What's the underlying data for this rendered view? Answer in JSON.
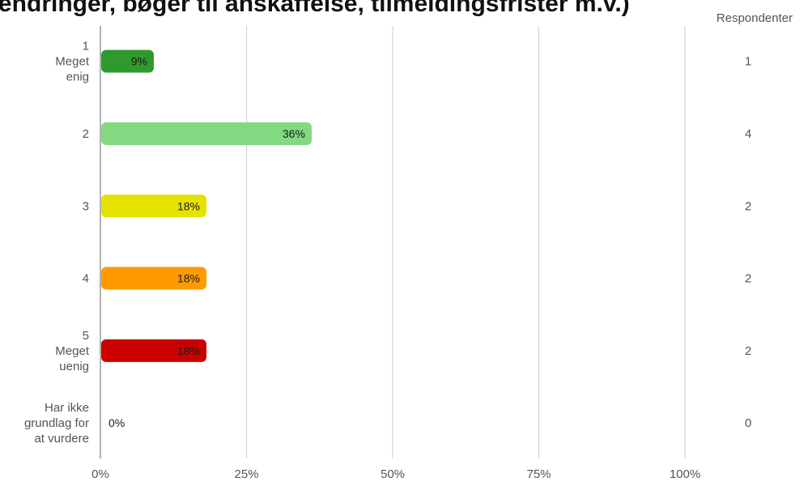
{
  "title": "ændringer, bøger til anskaffelse, tilmeldingsfrister m.v.)",
  "respondents_header": "Respondenter",
  "chart_data": {
    "type": "bar",
    "orientation": "horizontal",
    "categories": [
      [
        "1",
        "Meget",
        "enig"
      ],
      [
        "2"
      ],
      [
        "3"
      ],
      [
        "4"
      ],
      [
        "5",
        "Meget",
        "uenig"
      ],
      [
        "Har ikke",
        "grundlag for",
        "at vurdere"
      ]
    ],
    "values": [
      9,
      36,
      18,
      18,
      18,
      0
    ],
    "value_labels": [
      "9%",
      "36%",
      "18%",
      "18%",
      "18%",
      "0%"
    ],
    "respondents": [
      1,
      4,
      2,
      2,
      2,
      0
    ],
    "colors": [
      "#2e9a2e",
      "#82d982",
      "#e6e200",
      "#ff9a00",
      "#cc0000",
      "#cccccc"
    ],
    "xticks": [
      "0%",
      "25%",
      "50%",
      "75%",
      "100%"
    ],
    "xlim": [
      0,
      100
    ],
    "grid": true
  }
}
